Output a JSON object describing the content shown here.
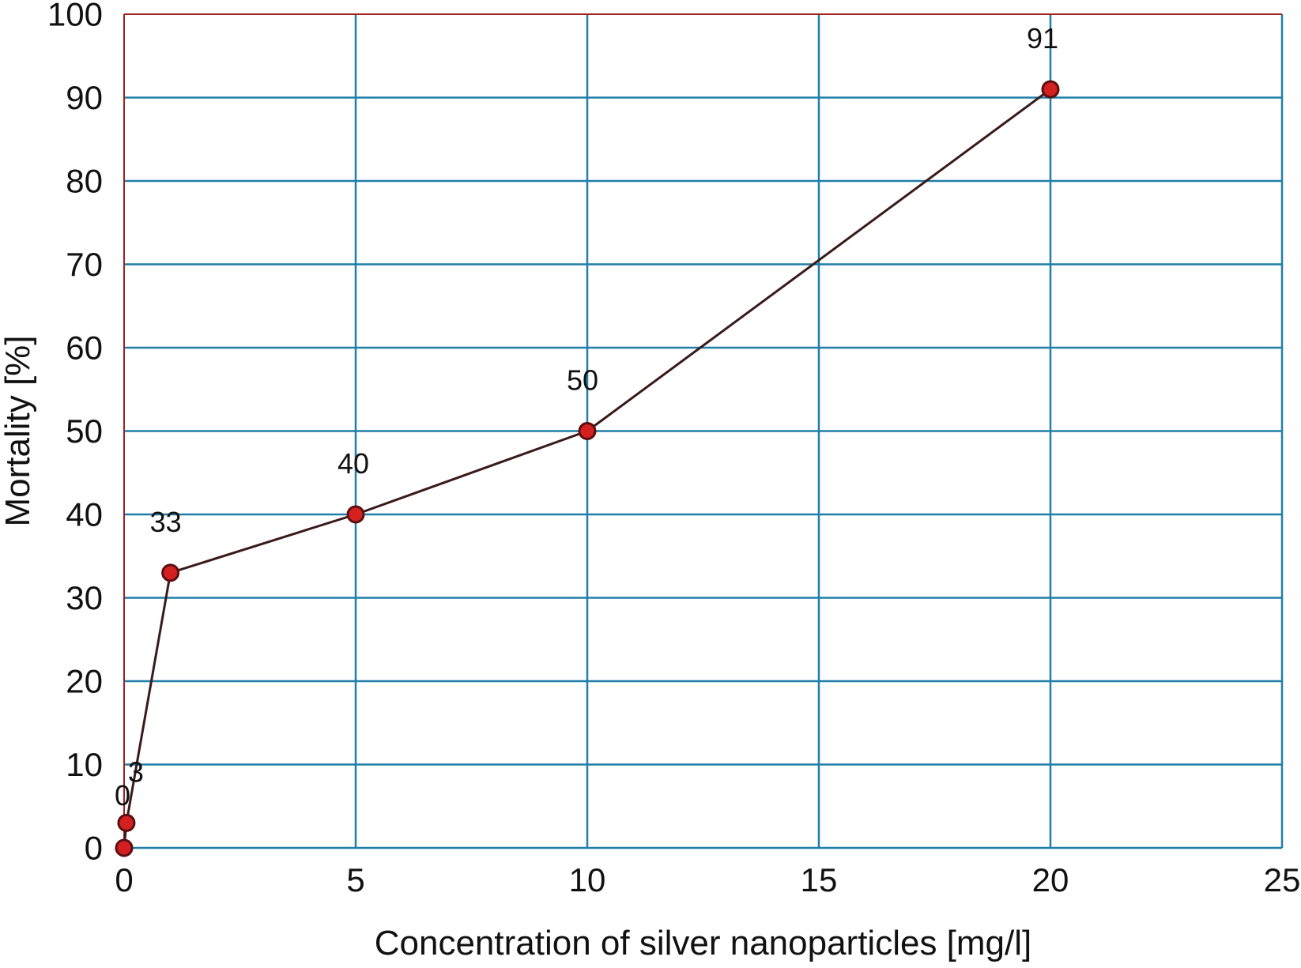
{
  "chart_data": {
    "type": "line",
    "title": "",
    "xlabel": "Concentration of silver nanoparticles [mg/l]",
    "ylabel": "Mortality [%]",
    "xlim": [
      0,
      25
    ],
    "ylim": [
      0,
      100
    ],
    "x_ticks": [
      0,
      5,
      10,
      15,
      20,
      25
    ],
    "y_ticks": [
      0,
      10,
      20,
      30,
      40,
      50,
      60,
      70,
      80,
      90,
      100
    ],
    "grid": true,
    "legend": "none",
    "series": [
      {
        "x": [
          0,
          0.05,
          1,
          5,
          10,
          20
        ],
        "y": [
          0,
          3,
          33,
          40,
          50,
          91
        ],
        "data_labels": [
          "0",
          "3",
          "33",
          "40",
          "50",
          "91"
        ]
      }
    ],
    "colors": {
      "grid": "#1f7fa8",
      "frame": "#a02020",
      "line": "#3a1a1a",
      "marker_fill": "#d42020",
      "marker_stroke": "#5a1010",
      "text": "#111111"
    }
  }
}
